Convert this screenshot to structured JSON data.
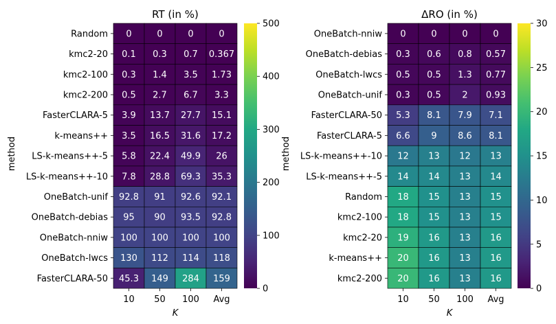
{
  "chart_data": [
    {
      "type": "heatmap",
      "title": "RT (in %)",
      "xlabel": "K",
      "ylabel": "method",
      "columns": [
        "10",
        "50",
        "100",
        "Avg"
      ],
      "rows": [
        "Random",
        "kmc2-20",
        "kmc2-100",
        "kmc2-200",
        "FasterCLARA-5",
        "k-means++",
        "LS-k-means++-5",
        "LS-k-means++-10",
        "OneBatch-unif",
        "OneBatch-debias",
        "OneBatch-nniw",
        "OneBatch-lwcs",
        "FasterCLARA-50"
      ],
      "values": [
        [
          0,
          0,
          0,
          0
        ],
        [
          0.1,
          0.3,
          0.7,
          0.367
        ],
        [
          0.3,
          1.4,
          3.5,
          1.73
        ],
        [
          0.5,
          2.7,
          6.7,
          3.3
        ],
        [
          3.9,
          13.7,
          27.7,
          15.1
        ],
        [
          3.5,
          16.5,
          31.6,
          17.2
        ],
        [
          5.8,
          22.4,
          49.9,
          26
        ],
        [
          7.8,
          28.8,
          69.3,
          35.3
        ],
        [
          92.8,
          91,
          92.6,
          92.1
        ],
        [
          95,
          90,
          93.5,
          92.8
        ],
        [
          100,
          100,
          100,
          100
        ],
        [
          130,
          112,
          114,
          118
        ],
        [
          45.3,
          149,
          284,
          159
        ]
      ],
      "labels": [
        [
          "0",
          "0",
          "0",
          "0"
        ],
        [
          "0.1",
          "0.3",
          "0.7",
          "0.367"
        ],
        [
          "0.3",
          "1.4",
          "3.5",
          "1.73"
        ],
        [
          "0.5",
          "2.7",
          "6.7",
          "3.3"
        ],
        [
          "3.9",
          "13.7",
          "27.7",
          "15.1"
        ],
        [
          "3.5",
          "16.5",
          "31.6",
          "17.2"
        ],
        [
          "5.8",
          "22.4",
          "49.9",
          "26"
        ],
        [
          "7.8",
          "28.8",
          "69.3",
          "35.3"
        ],
        [
          "92.8",
          "91",
          "92.6",
          "92.1"
        ],
        [
          "95",
          "90",
          "93.5",
          "92.8"
        ],
        [
          "100",
          "100",
          "100",
          "100"
        ],
        [
          "130",
          "112",
          "114",
          "118"
        ],
        [
          "45.3",
          "149",
          "284",
          "159"
        ]
      ],
      "colorbar": {
        "min": 0,
        "max": 500,
        "ticks": [
          "0",
          "100",
          "200",
          "300",
          "400",
          "500"
        ],
        "colormap": "viridis"
      }
    },
    {
      "type": "heatmap",
      "title": "ΔRO (in %)",
      "xlabel": "K",
      "ylabel": "method",
      "columns": [
        "10",
        "50",
        "100",
        "Avg"
      ],
      "rows": [
        "OneBatch-nniw",
        "OneBatch-debias",
        "OneBatch-lwcs",
        "OneBatch-unif",
        "FasterCLARA-50",
        "FasterCLARA-5",
        "LS-k-means++-10",
        "LS-k-means++-5",
        "Random",
        "kmc2-100",
        "kmc2-20",
        "k-means++",
        "kmc2-200"
      ],
      "values": [
        [
          0,
          0,
          0,
          0
        ],
        [
          0.3,
          0.6,
          0.8,
          0.57
        ],
        [
          0.5,
          0.5,
          1.3,
          0.77
        ],
        [
          0.3,
          0.5,
          2,
          0.93
        ],
        [
          5.3,
          8.1,
          7.9,
          7.1
        ],
        [
          6.6,
          9,
          8.6,
          8.1
        ],
        [
          12,
          13,
          12,
          13
        ],
        [
          14,
          14,
          13,
          14
        ],
        [
          18,
          15,
          13,
          15
        ],
        [
          18,
          15,
          13,
          15
        ],
        [
          19,
          16,
          13,
          16
        ],
        [
          20,
          16,
          13,
          16
        ],
        [
          20,
          16,
          13,
          16
        ]
      ],
      "labels": [
        [
          "0",
          "0",
          "0",
          "0"
        ],
        [
          "0.3",
          "0.6",
          "0.8",
          "0.57"
        ],
        [
          "0.5",
          "0.5",
          "1.3",
          "0.77"
        ],
        [
          "0.3",
          "0.5",
          "2",
          "0.93"
        ],
        [
          "5.3",
          "8.1",
          "7.9",
          "7.1"
        ],
        [
          "6.6",
          "9",
          "8.6",
          "8.1"
        ],
        [
          "12",
          "13",
          "12",
          "13"
        ],
        [
          "14",
          "14",
          "13",
          "14"
        ],
        [
          "18",
          "15",
          "13",
          "15"
        ],
        [
          "18",
          "15",
          "13",
          "15"
        ],
        [
          "19",
          "16",
          "13",
          "16"
        ],
        [
          "20",
          "16",
          "13",
          "16"
        ],
        [
          "20",
          "16",
          "13",
          "16"
        ]
      ],
      "colorbar": {
        "min": 0,
        "max": 30,
        "ticks": [
          "0",
          "5",
          "10",
          "15",
          "20",
          "25",
          "30"
        ],
        "colormap": "viridis"
      }
    }
  ]
}
